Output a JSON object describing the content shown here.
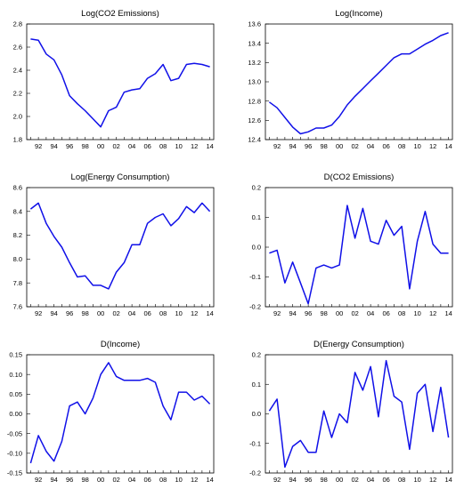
{
  "chart_data": [
    {
      "type": "line",
      "title": "Log(CO2 Emissions)",
      "x": [
        1991,
        1992,
        1993,
        1994,
        1995,
        1996,
        1997,
        1998,
        1999,
        2000,
        2001,
        2002,
        2003,
        2004,
        2005,
        2006,
        2007,
        2008,
        2009,
        2010,
        2011,
        2012,
        2013,
        2014
      ],
      "values": [
        2.67,
        2.66,
        2.54,
        2.49,
        2.36,
        2.18,
        2.11,
        2.05,
        1.98,
        1.91,
        2.05,
        2.08,
        2.21,
        2.23,
        2.24,
        2.33,
        2.37,
        2.45,
        2.31,
        2.33,
        2.45,
        2.46,
        2.45,
        2.43
      ],
      "ylim": [
        1.8,
        2.8
      ],
      "yticks": [
        1.8,
        2.0,
        2.2,
        2.4,
        2.6,
        2.8
      ],
      "ytick_labels": [
        "1.8",
        "2.0",
        "2.2",
        "2.4",
        "2.6",
        "2.8"
      ],
      "xticks": [
        1992,
        1994,
        1996,
        1998,
        2000,
        2002,
        2004,
        2006,
        2008,
        2010,
        2012,
        2014
      ],
      "xtick_labels": [
        "92",
        "94",
        "96",
        "98",
        "00",
        "02",
        "04",
        "06",
        "08",
        "10",
        "12",
        "14"
      ]
    },
    {
      "type": "line",
      "title": "Log(Income)",
      "x": [
        1991,
        1992,
        1993,
        1994,
        1995,
        1996,
        1997,
        1998,
        1999,
        2000,
        2001,
        2002,
        2003,
        2004,
        2005,
        2006,
        2007,
        2008,
        2009,
        2010,
        2011,
        2012,
        2013,
        2014
      ],
      "values": [
        12.79,
        12.73,
        12.63,
        12.53,
        12.46,
        12.48,
        12.52,
        12.52,
        12.55,
        12.64,
        12.76,
        12.85,
        12.93,
        13.01,
        13.09,
        13.17,
        13.25,
        13.29,
        13.29,
        13.34,
        13.39,
        13.43,
        13.48,
        13.51
      ],
      "ylim": [
        12.4,
        13.6
      ],
      "yticks": [
        12.4,
        12.6,
        12.8,
        13.0,
        13.2,
        13.4,
        13.6
      ],
      "ytick_labels": [
        "12.4",
        "12.6",
        "12.8",
        "13.0",
        "13.2",
        "13.4",
        "13.6"
      ],
      "xticks": [
        1992,
        1994,
        1996,
        1998,
        2000,
        2002,
        2004,
        2006,
        2008,
        2010,
        2012,
        2014
      ],
      "xtick_labels": [
        "92",
        "94",
        "96",
        "98",
        "00",
        "02",
        "04",
        "06",
        "08",
        "10",
        "12",
        "14"
      ]
    },
    {
      "type": "line",
      "title": "Log(Energy Consumption)",
      "x": [
        1991,
        1992,
        1993,
        1994,
        1995,
        1996,
        1997,
        1998,
        1999,
        2000,
        2001,
        2002,
        2003,
        2004,
        2005,
        2006,
        2007,
        2008,
        2009,
        2010,
        2011,
        2012,
        2013,
        2014
      ],
      "values": [
        8.42,
        8.47,
        8.3,
        8.19,
        8.1,
        7.97,
        7.85,
        7.86,
        7.78,
        7.78,
        7.75,
        7.89,
        7.97,
        8.12,
        8.12,
        8.3,
        8.35,
        8.38,
        8.28,
        8.34,
        8.44,
        8.39,
        8.47,
        8.4
      ],
      "ylim": [
        7.6,
        8.6
      ],
      "yticks": [
        7.6,
        7.8,
        8.0,
        8.2,
        8.4,
        8.6
      ],
      "ytick_labels": [
        "7.6",
        "7.8",
        "8.0",
        "8.2",
        "8.4",
        "8.6"
      ],
      "xticks": [
        1992,
        1994,
        1996,
        1998,
        2000,
        2002,
        2004,
        2006,
        2008,
        2010,
        2012,
        2014
      ],
      "xtick_labels": [
        "92",
        "94",
        "96",
        "98",
        "00",
        "02",
        "04",
        "06",
        "08",
        "10",
        "12",
        "14"
      ]
    },
    {
      "type": "line",
      "title": "D(CO2 Emissions)",
      "x": [
        1991,
        1992,
        1993,
        1994,
        1995,
        1996,
        1997,
        1998,
        1999,
        2000,
        2001,
        2002,
        2003,
        2004,
        2005,
        2006,
        2007,
        2008,
        2009,
        2010,
        2011,
        2012,
        2013,
        2014
      ],
      "values": [
        -0.02,
        -0.01,
        -0.12,
        -0.05,
        -0.12,
        -0.19,
        -0.07,
        -0.06,
        -0.07,
        -0.06,
        0.14,
        0.03,
        0.13,
        0.02,
        0.01,
        0.09,
        0.04,
        0.07,
        -0.14,
        0.02,
        0.12,
        0.01,
        -0.02,
        -0.02
      ],
      "ylim": [
        -0.2,
        0.2
      ],
      "yticks": [
        -0.2,
        -0.1,
        0.0,
        0.1,
        0.2
      ],
      "ytick_labels": [
        "-0.2",
        "-0.1",
        "0.0",
        "0.1",
        "0.2"
      ],
      "xticks": [
        1992,
        1994,
        1996,
        1998,
        2000,
        2002,
        2004,
        2006,
        2008,
        2010,
        2012,
        2014
      ],
      "xtick_labels": [
        "92",
        "94",
        "96",
        "98",
        "00",
        "02",
        "04",
        "06",
        "08",
        "10",
        "12",
        "14"
      ]
    },
    {
      "type": "line",
      "title": "D(Income)",
      "x": [
        1991,
        1992,
        1993,
        1994,
        1995,
        1996,
        1997,
        1998,
        1999,
        2000,
        2001,
        2002,
        2003,
        2004,
        2005,
        2006,
        2007,
        2008,
        2009,
        2010,
        2011,
        2012,
        2013,
        2014
      ],
      "values": [
        -0.125,
        -0.055,
        -0.095,
        -0.12,
        -0.07,
        0.02,
        0.03,
        0.0,
        0.04,
        0.1,
        0.13,
        0.095,
        0.085,
        0.085,
        0.085,
        0.09,
        0.08,
        0.02,
        -0.015,
        0.055,
        0.055,
        0.035,
        0.045,
        0.025
      ],
      "ylim": [
        -0.15,
        0.15
      ],
      "yticks": [
        -0.15,
        -0.1,
        -0.05,
        0.0,
        0.05,
        0.1,
        0.15
      ],
      "ytick_labels": [
        "-0.15",
        "-0.10",
        "-0.05",
        "0.00",
        "0.05",
        "0.10",
        "0.15"
      ],
      "xticks": [
        1992,
        1994,
        1996,
        1998,
        2000,
        2002,
        2004,
        2006,
        2008,
        2010,
        2012,
        2014
      ],
      "xtick_labels": [
        "92",
        "94",
        "96",
        "98",
        "00",
        "02",
        "04",
        "06",
        "08",
        "10",
        "12",
        "14"
      ]
    },
    {
      "type": "line",
      "title": "D(Energy Consumption)",
      "x": [
        1991,
        1992,
        1993,
        1994,
        1995,
        1996,
        1997,
        1998,
        1999,
        2000,
        2001,
        2002,
        2003,
        2004,
        2005,
        2006,
        2007,
        2008,
        2009,
        2010,
        2011,
        2012,
        2013,
        2014
      ],
      "values": [
        0.01,
        0.05,
        -0.18,
        -0.11,
        -0.09,
        -0.13,
        -0.13,
        0.01,
        -0.08,
        0.0,
        -0.03,
        0.14,
        0.08,
        0.16,
        -0.01,
        0.18,
        0.06,
        0.04,
        -0.12,
        0.07,
        0.1,
        -0.06,
        0.09,
        -0.08
      ],
      "ylim": [
        -0.2,
        0.2
      ],
      "yticks": [
        -0.2,
        -0.1,
        0.0,
        0.1,
        0.2
      ],
      "ytick_labels": [
        "-0.2",
        "-0.1",
        "0.0",
        "0.1",
        "0.2"
      ],
      "xticks": [
        1992,
        1994,
        1996,
        1998,
        2000,
        2002,
        2004,
        2006,
        2008,
        2010,
        2012,
        2014
      ],
      "xtick_labels": [
        "92",
        "94",
        "96",
        "98",
        "00",
        "02",
        "04",
        "06",
        "08",
        "10",
        "12",
        "14"
      ]
    }
  ],
  "style": {
    "line_color": "#1010e8",
    "frame_color": "#000000"
  }
}
